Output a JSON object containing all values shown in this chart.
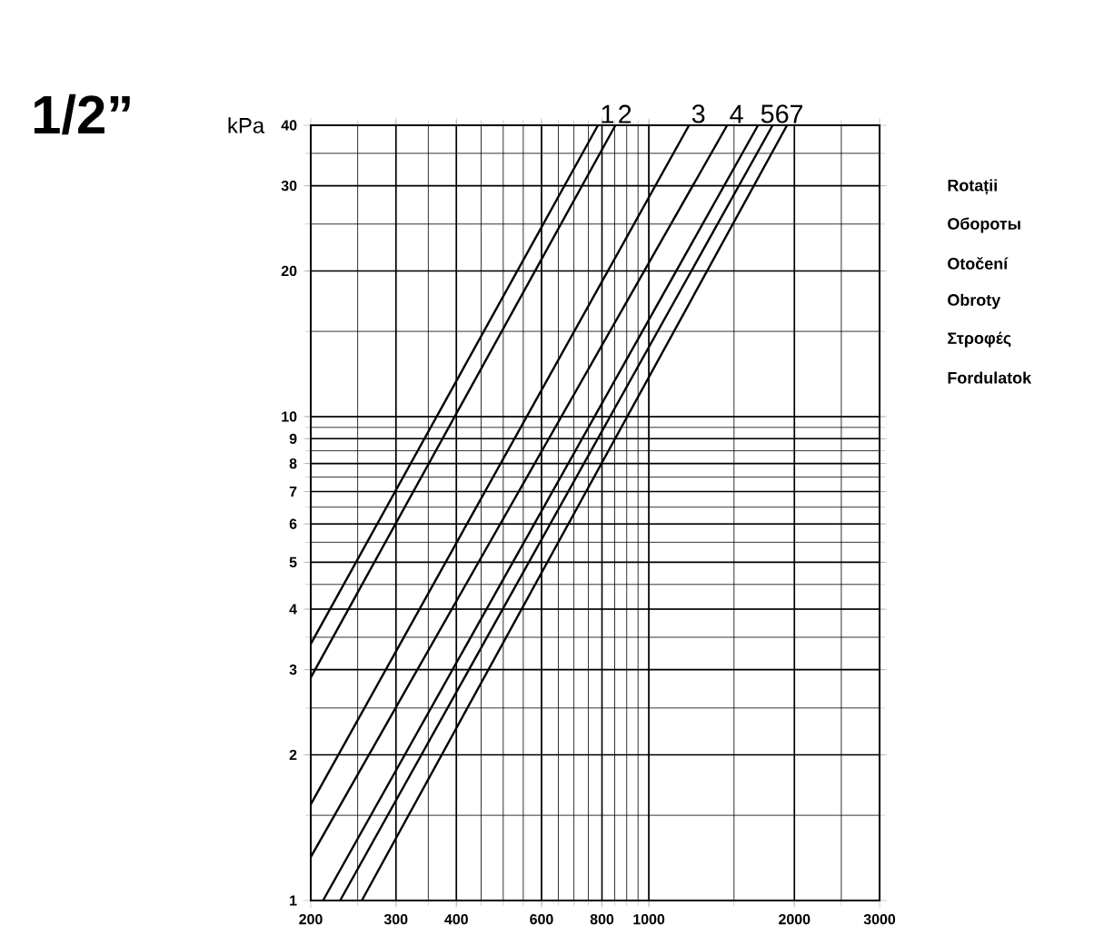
{
  "chart_data": {
    "type": "line",
    "title": "1/2”",
    "ylabel": "kPa",
    "log": "xy",
    "grid": true,
    "marker": "none",
    "line_style": "solid",
    "xlim": [
      200,
      3000
    ],
    "ylim": [
      1,
      40
    ],
    "xticks": [
      200,
      300,
      400,
      600,
      800,
      1000,
      2000,
      3000
    ],
    "yticks": [
      1,
      2,
      3,
      4,
      5,
      6,
      7,
      8,
      9,
      10,
      20,
      30,
      40
    ],
    "series": [
      {
        "name": "1",
        "color": "#000000",
        "x": [
          200,
          785
        ],
        "values": [
          3.39,
          40
        ]
      },
      {
        "name": "2",
        "color": "#000000",
        "x": [
          200,
          853
        ],
        "values": [
          2.89,
          40
        ]
      },
      {
        "name": "3",
        "color": "#000000",
        "x": [
          200,
          1211
        ],
        "values": [
          1.58,
          40
        ]
      },
      {
        "name": "4",
        "color": "#000000",
        "x": [
          200,
          1452
        ],
        "values": [
          1.23,
          40
        ]
      },
      {
        "name": "5",
        "color": "#000000",
        "x": [
          212,
          1682
        ],
        "values": [
          1,
          40
        ]
      },
      {
        "name": "6",
        "color": "#000000",
        "x": [
          230,
          1803
        ],
        "values": [
          1,
          40
        ]
      },
      {
        "name": "7",
        "color": "#000000",
        "x": [
          255,
          1931
        ],
        "values": [
          1,
          40
        ]
      }
    ],
    "annotations": [
      "Rotații",
      "Обороты",
      "Otočení",
      "Obroty",
      "Στροφές",
      "Fordulatok"
    ]
  }
}
